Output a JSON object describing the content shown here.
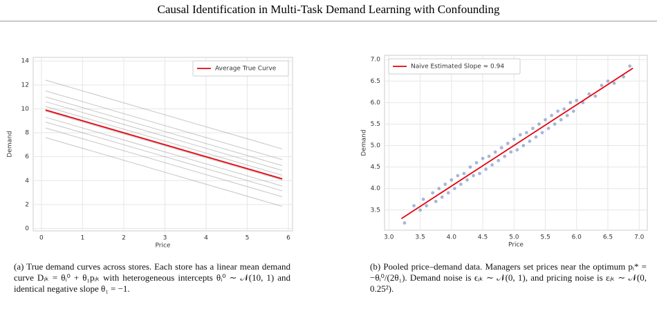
{
  "header": {
    "title": "Causal Identification in Multi-Task Demand Learning with Confounding"
  },
  "chart_data": [
    {
      "type": "line",
      "xlabel": "Price",
      "ylabel": "Demand",
      "xlim": [
        -0.2,
        6.1
      ],
      "ylim": [
        -0.2,
        14.3
      ],
      "xticks": [
        0,
        1,
        2,
        3,
        4,
        5,
        6
      ],
      "yticks": [
        0,
        2,
        4,
        6,
        8,
        10,
        12,
        14
      ],
      "grid": true,
      "legend": "upper right",
      "series": [
        {
          "color": "#808080",
          "x": [
            0.1,
            5.85
          ],
          "values": [
            12.4,
            6.65
          ]
        },
        {
          "color": "#808080",
          "x": [
            0.1,
            5.85
          ],
          "values": [
            11.5,
            5.75
          ]
        },
        {
          "color": "#808080",
          "x": [
            0.1,
            5.85
          ],
          "values": [
            11,
            5.25
          ]
        },
        {
          "color": "#808080",
          "x": [
            0.1,
            5.85
          ],
          "values": [
            10.6,
            4.85
          ]
        },
        {
          "color": "#808080",
          "x": [
            0.1,
            5.85
          ],
          "values": [
            10.2,
            4.45
          ]
        },
        {
          "color": "#808080",
          "x": [
            0.1,
            5.85
          ],
          "values": [
            9.8,
            4.05
          ]
        },
        {
          "color": "#808080",
          "x": [
            0.1,
            5.85
          ],
          "values": [
            9.3,
            3.55
          ]
        },
        {
          "color": "#808080",
          "x": [
            0.1,
            5.85
          ],
          "values": [
            8.9,
            3.15
          ]
        },
        {
          "color": "#808080",
          "x": [
            0.1,
            5.85
          ],
          "values": [
            8.4,
            2.65
          ]
        },
        {
          "color": "#808080",
          "x": [
            0.1,
            5.85
          ],
          "values": [
            7.6,
            1.85
          ]
        },
        {
          "name": "Average True Curve",
          "color": "#e8000b",
          "x": [
            0.1,
            5.85
          ],
          "values": [
            9.9,
            4.15
          ]
        }
      ],
      "caption": "(a) True demand curves across stores. Each store has a linear mean demand curve Dᵢₖ = θᵢ⁰ + θ₁pᵢₖ with heterogeneous intercepts θᵢ⁰ ∼ 𝒩(10, 1) and identical negative slope θ₁ = −1."
    },
    {
      "type": "scatter",
      "xlabel": "Price",
      "ylabel": "Demand",
      "xlim": [
        2.93,
        7.13
      ],
      "ylim": [
        3.03,
        7.1
      ],
      "xticks": [
        {
          "value": 3,
          "label": "3.0"
        },
        3.5,
        {
          "value": 4,
          "label": "4.0"
        },
        4.5,
        {
          "value": 5,
          "label": "5.0"
        },
        5.5,
        {
          "value": 6,
          "label": "6.0"
        },
        6.5,
        {
          "value": 7,
          "label": "7.0"
        }
      ],
      "yticks": [
        3.5,
        {
          "value": 4,
          "label": "4.0"
        },
        4.5,
        {
          "value": 5,
          "label": "5.0"
        },
        5.5,
        {
          "value": 6,
          "label": "6.0"
        },
        6.5,
        {
          "value": 7,
          "label": "7.0"
        }
      ],
      "grid": true,
      "legend": "upper left",
      "points": {
        "color": "#4c72b0",
        "x": [
          3.25,
          3.4,
          3.5,
          3.55,
          3.6,
          3.7,
          3.75,
          3.8,
          3.85,
          3.9,
          3.95,
          4.0,
          4.05,
          4.1,
          4.15,
          4.2,
          4.25,
          4.3,
          4.35,
          4.4,
          4.45,
          4.5,
          4.55,
          4.6,
          4.65,
          4.7,
          4.75,
          4.8,
          4.85,
          4.9,
          4.95,
          5.0,
          5.05,
          5.1,
          5.15,
          5.2,
          5.25,
          5.3,
          5.35,
          5.4,
          5.45,
          5.5,
          5.55,
          5.6,
          5.65,
          5.7,
          5.75,
          5.8,
          5.85,
          5.9,
          5.95,
          6.0,
          6.1,
          6.2,
          6.3,
          6.4,
          6.5,
          6.6,
          6.75,
          6.85
        ],
        "values": [
          3.2,
          3.6,
          3.5,
          3.75,
          3.6,
          3.9,
          3.7,
          4.0,
          3.8,
          4.1,
          3.9,
          4.2,
          4.0,
          4.3,
          4.1,
          4.35,
          4.2,
          4.5,
          4.3,
          4.6,
          4.35,
          4.7,
          4.45,
          4.75,
          4.55,
          4.85,
          4.65,
          4.95,
          4.75,
          5.05,
          4.85,
          5.15,
          4.9,
          5.25,
          5.0,
          5.3,
          5.1,
          5.4,
          5.2,
          5.5,
          5.3,
          5.6,
          5.4,
          5.7,
          5.5,
          5.8,
          5.6,
          5.85,
          5.7,
          6.0,
          5.8,
          6.05,
          6.0,
          6.2,
          6.15,
          6.4,
          6.5,
          6.45,
          6.6,
          6.85
        ]
      },
      "series": [
        {
          "name": "Naive Estimated Slope ≈ 0.94",
          "color": "#e8000b",
          "x": [
            3.2,
            6.9
          ],
          "values": [
            3.3,
            6.8
          ]
        }
      ],
      "caption": "(b) Pooled price–demand data. Managers set prices near the optimum pᵢ* = −θᵢ⁰/(2θ₁). Demand noise is ϵᵢₖ ∼ 𝒩(0, 1), and pricing noise is εᵢₖ ∼ 𝒩(0, 0.25²)."
    }
  ]
}
